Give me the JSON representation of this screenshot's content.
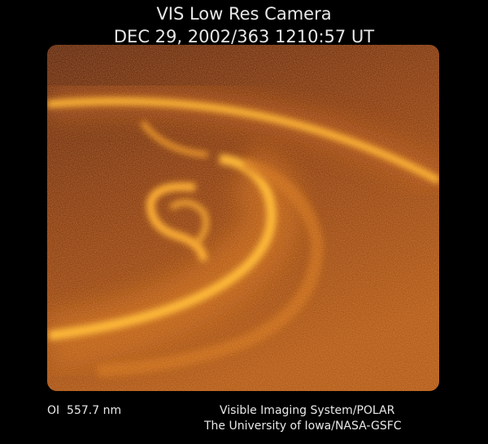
{
  "header": {
    "title": "VIS Low Res Camera",
    "timestamp": "DEC 29, 2002/363 1210:57 UT"
  },
  "footer": {
    "wavelength": "OI  557.7 nm",
    "instrument": "Visible Imaging System/POLAR",
    "credit": "The University of Iowa/NASA-GSFC"
  }
}
